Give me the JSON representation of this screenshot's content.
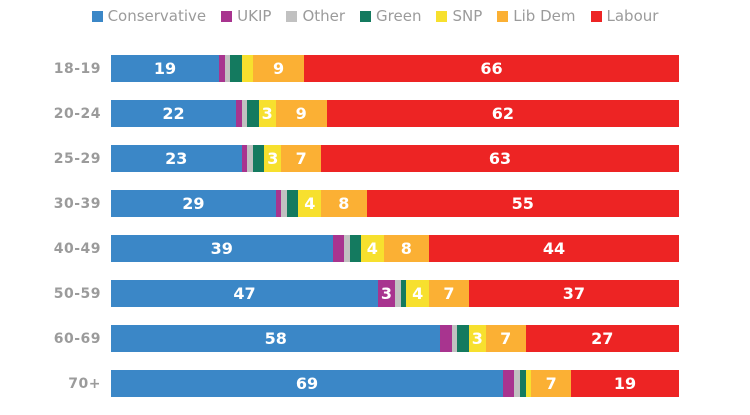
{
  "chart_data": {
    "type": "bar",
    "variant": "horizontal-stacked",
    "title": "",
    "xlabel": "",
    "ylabel": "",
    "unit": "percent",
    "xlim": [
      0,
      100
    ],
    "grid": false,
    "legend_position": "top",
    "label_threshold": 3,
    "value_label_color": "#ffffff",
    "axis_label_color": "#9b9b9b",
    "categories": [
      "18-19",
      "20-24",
      "25-29",
      "30-39",
      "40-49",
      "50-59",
      "60-69",
      "70+"
    ],
    "series": [
      {
        "name": "Conservative",
        "color": "#3b87c7",
        "values": [
          19,
          22,
          23,
          29,
          39,
          47,
          58,
          69
        ]
      },
      {
        "name": "UKIP",
        "color": "#a8348f",
        "values": [
          1,
          1,
          1,
          1,
          2,
          3,
          2,
          2
        ]
      },
      {
        "name": "Other",
        "color": "#c1c1c1",
        "values": [
          1,
          1,
          1,
          1,
          1,
          1,
          1,
          1
        ]
      },
      {
        "name": "Green",
        "color": "#147a5f",
        "values": [
          2,
          2,
          2,
          2,
          2,
          1,
          2,
          1
        ]
      },
      {
        "name": "SNP",
        "color": "#f7e02e",
        "values": [
          2,
          3,
          3,
          4,
          4,
          4,
          3,
          1
        ]
      },
      {
        "name": "Lib Dem",
        "color": "#fbb034",
        "values": [
          9,
          9,
          7,
          8,
          8,
          7,
          7,
          7
        ]
      },
      {
        "name": "Labour",
        "color": "#ed2424",
        "values": [
          66,
          62,
          63,
          55,
          44,
          37,
          27,
          19
        ]
      }
    ]
  }
}
